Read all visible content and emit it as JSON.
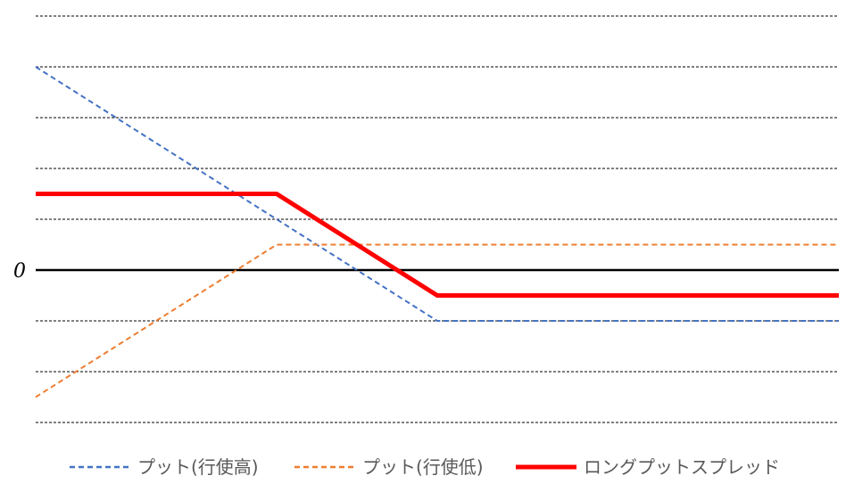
{
  "chart_data": {
    "type": "line",
    "title": "",
    "xlabel": "",
    "ylabel": "",
    "x": [
      0,
      3,
      5,
      10
    ],
    "xlim": [
      0,
      10
    ],
    "ylim": [
      -3,
      5
    ],
    "y_tick_labels": [
      {
        "value": 0,
        "label": "0"
      }
    ],
    "grid": true,
    "legend_position": "bottom",
    "series": [
      {
        "name": "プット(行使高)",
        "values": [
          4,
          1,
          -1,
          -1
        ],
        "color": "#4472C4",
        "style": "dashed"
      },
      {
        "name": "プット(行使低)",
        "values": [
          -2.5,
          0.5,
          0.5,
          0.5
        ],
        "color": "#ED7D31",
        "style": "dashed"
      },
      {
        "name": "ロングプットスプレッド",
        "values": [
          1.5,
          1.5,
          -0.5,
          -0.5
        ],
        "color": "#FF0000",
        "style": "solid-thick"
      }
    ]
  }
}
